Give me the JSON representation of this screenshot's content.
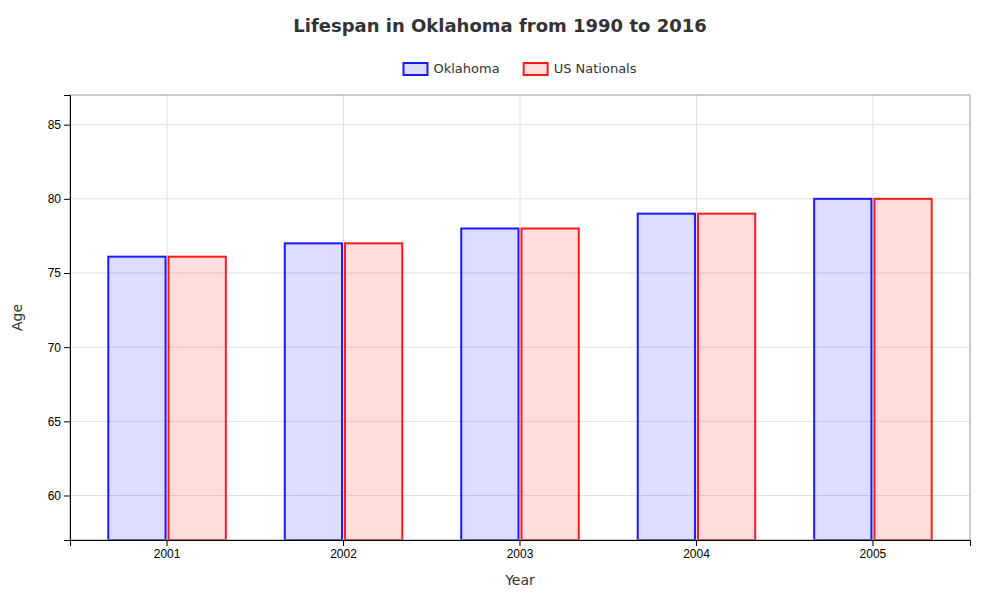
{
  "chart_data": {
    "type": "bar",
    "title": "Lifespan in Oklahoma from 1990 to 2016",
    "xlabel": "Year",
    "ylabel": "Age",
    "categories": [
      "2001",
      "2002",
      "2003",
      "2004",
      "2005"
    ],
    "series": [
      {
        "name": "Oklahoma",
        "color": "#1a1aff",
        "values": [
          76.1,
          77.0,
          78.0,
          79.0,
          80.0
        ]
      },
      {
        "name": "US Nationals",
        "color": "#ff1a1a",
        "values": [
          76.1,
          77.0,
          78.0,
          79.0,
          80.0
        ]
      }
    ],
    "ylim": [
      57,
      87
    ],
    "yticks": [
      60,
      65,
      70,
      75,
      80,
      85
    ],
    "grid": true,
    "legend": "top"
  }
}
